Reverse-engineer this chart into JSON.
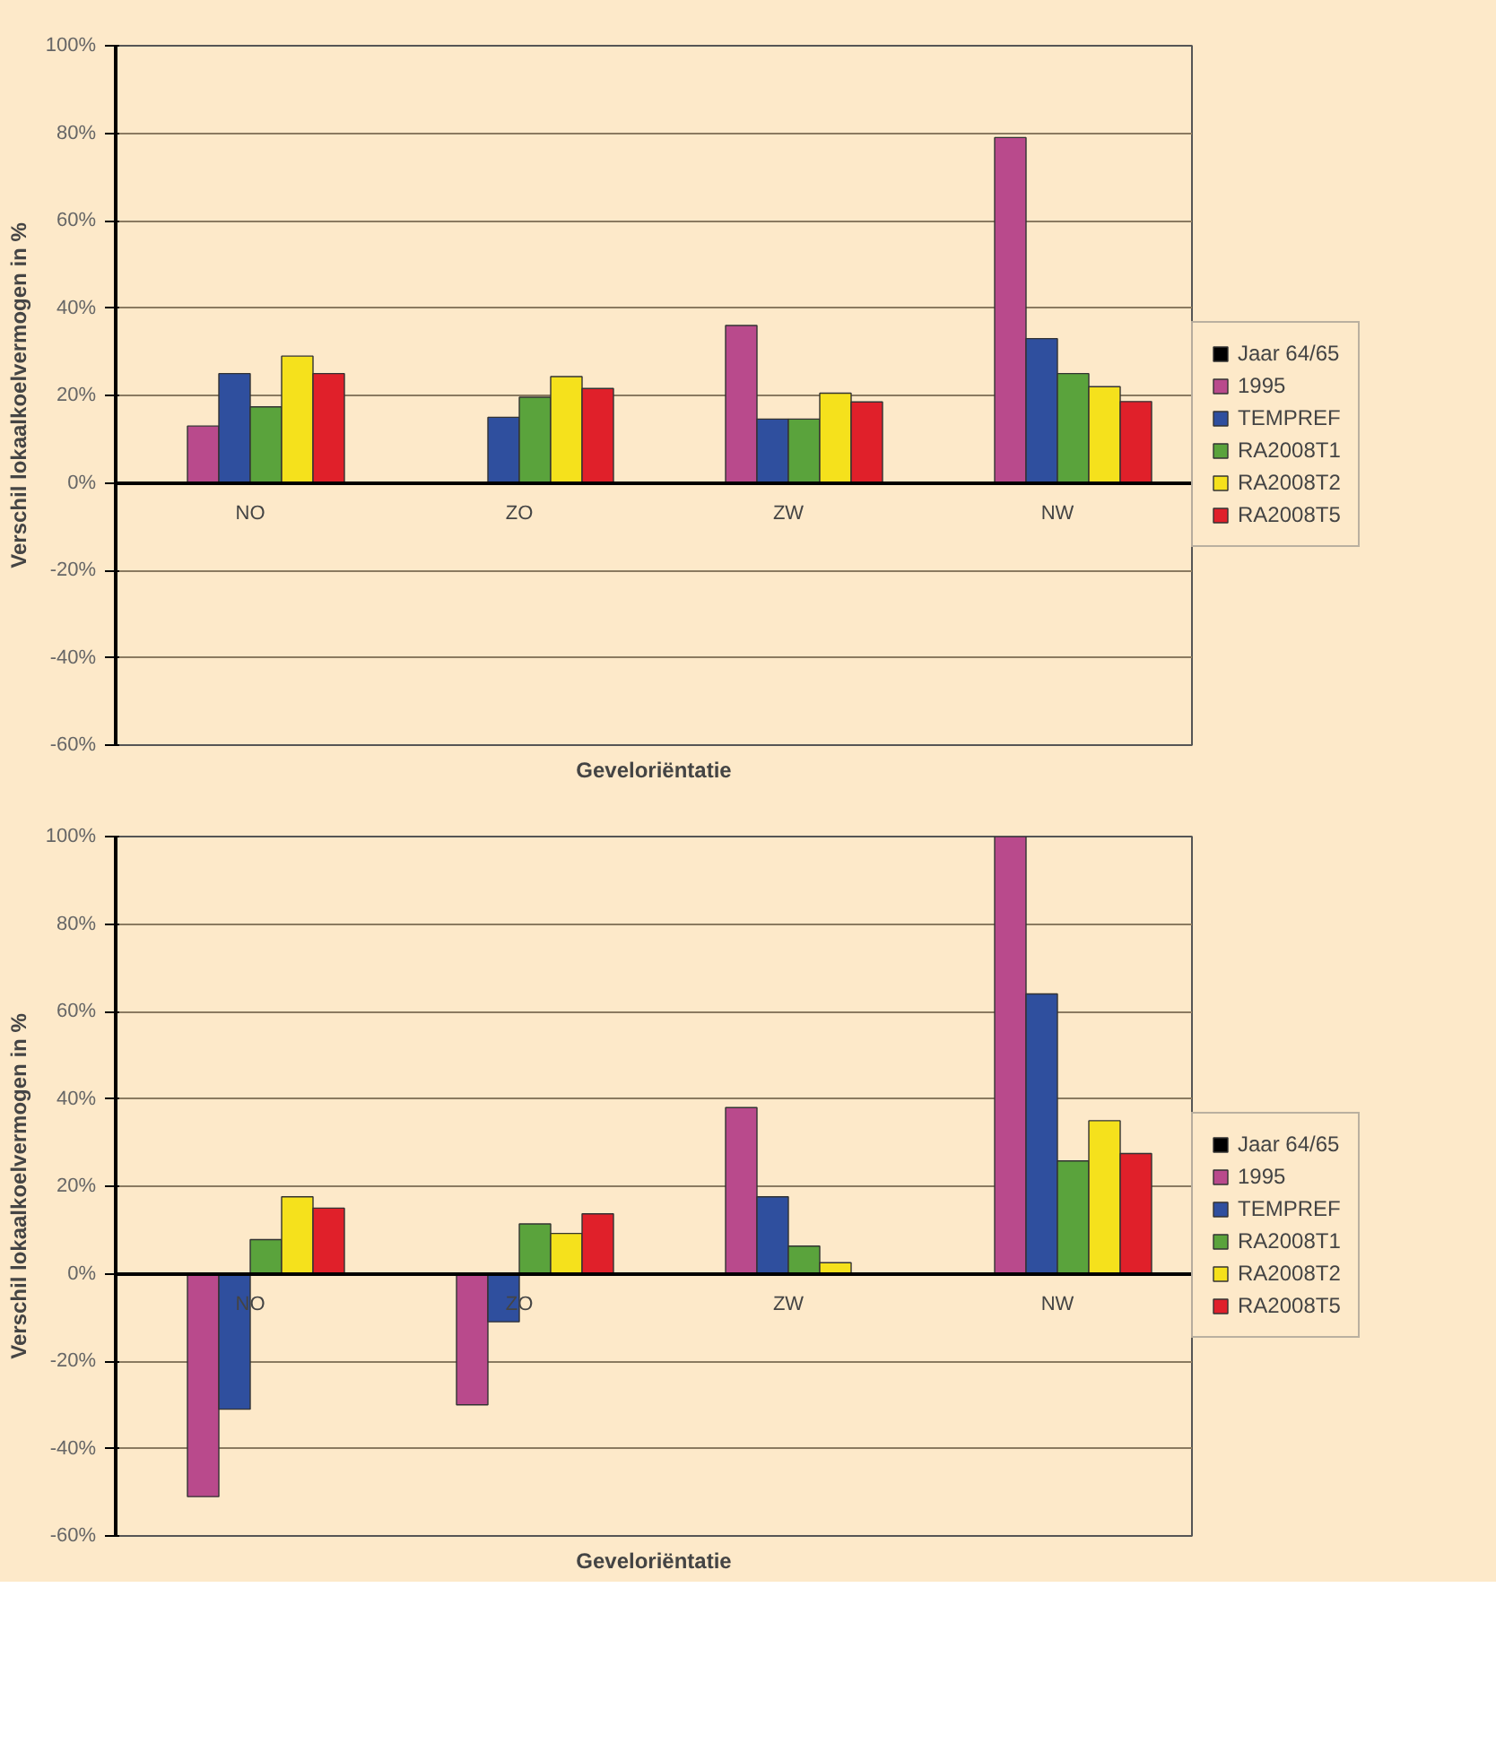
{
  "chart_data": [
    {
      "type": "bar",
      "xlabel": "Geveloriëntatie",
      "ylabel": "Verschil lokaalkoelvermogen in %",
      "categories": [
        "NO",
        "ZO",
        "ZW",
        "NW"
      ],
      "series": [
        {
          "name": "Jaar 64/65",
          "color": "#000000",
          "values": [
            null,
            null,
            null,
            null
          ]
        },
        {
          "name": "1995",
          "color": "#b94a8c",
          "values": [
            13,
            null,
            36,
            79
          ]
        },
        {
          "name": "TEMPREF",
          "color": "#2f4f9e",
          "values": [
            25,
            15,
            14.6,
            33
          ]
        },
        {
          "name": "RA2008T1",
          "color": "#5aa33c",
          "values": [
            17.4,
            19.6,
            14.6,
            25
          ]
        },
        {
          "name": "RA2008T2",
          "color": "#f5e11c",
          "values": [
            29,
            24.3,
            20.5,
            22
          ]
        },
        {
          "name": "RA2008T5",
          "color": "#e0202a",
          "values": [
            25,
            21.6,
            18.5,
            18.6
          ]
        }
      ],
      "ylim": [
        -60,
        100
      ],
      "yticks": [
        {
          "value": -60,
          "label": "-60%"
        },
        {
          "value": -40,
          "label": "-40%"
        },
        {
          "value": -20,
          "label": "-20%"
        },
        {
          "value": 0,
          "label": "0%"
        },
        {
          "value": 20,
          "label": "20%"
        },
        {
          "value": 40,
          "label": "40%"
        },
        {
          "value": 60,
          "label": "60%"
        },
        {
          "value": 80,
          "label": "80%"
        },
        {
          "value": 100,
          "label": "100%"
        }
      ],
      "grid": "y",
      "legend": "right"
    },
    {
      "type": "bar",
      "xlabel": "Geveloriëntatie",
      "ylabel": "Verschil lokaalkoelvermogen in %",
      "categories": [
        "NO",
        "ZO",
        "ZW",
        "NW"
      ],
      "series": [
        {
          "name": "Jaar 64/65",
          "color": "#000000",
          "values": [
            null,
            null,
            null,
            null
          ]
        },
        {
          "name": "1995",
          "color": "#b94a8c",
          "values": [
            -51,
            -30,
            38,
            100
          ]
        },
        {
          "name": "TEMPREF",
          "color": "#2f4f9e",
          "values": [
            -31,
            -11,
            17.6,
            64
          ]
        },
        {
          "name": "RA2008T1",
          "color": "#5aa33c",
          "values": [
            7.8,
            11.4,
            6.3,
            25.8
          ]
        },
        {
          "name": "RA2008T2",
          "color": "#f5e11c",
          "values": [
            17.6,
            9.2,
            2.5,
            35
          ]
        },
        {
          "name": "RA2008T5",
          "color": "#e0202a",
          "values": [
            15,
            13.7,
            null,
            27.5
          ]
        }
      ],
      "ylim": [
        -60,
        100
      ],
      "yticks": [
        {
          "value": -60,
          "label": "-60%"
        },
        {
          "value": -40,
          "label": "-40%"
        },
        {
          "value": -20,
          "label": "-20%"
        },
        {
          "value": 0,
          "label": "0%"
        },
        {
          "value": 20,
          "label": "20%"
        },
        {
          "value": 40,
          "label": "40%"
        },
        {
          "value": 60,
          "label": "60%"
        },
        {
          "value": 80,
          "label": "80%"
        },
        {
          "value": 100,
          "label": "100%"
        }
      ],
      "grid": "y",
      "legend": "right"
    }
  ]
}
